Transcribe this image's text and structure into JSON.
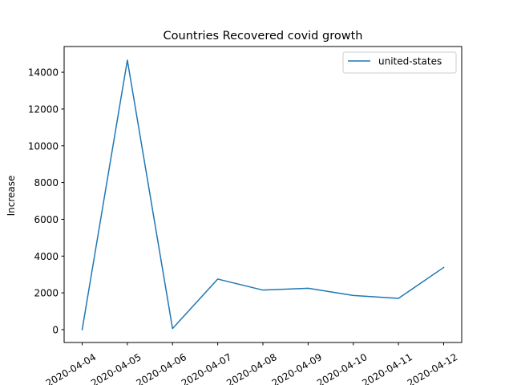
{
  "chart_data": {
    "type": "line",
    "title": "Countries Recovered covid growth",
    "xlabel": "",
    "ylabel": "Increase",
    "categories": [
      "2020-04-04",
      "2020-04-05",
      "2020-04-06",
      "2020-04-07",
      "2020-04-08",
      "2020-04-09",
      "2020-04-10",
      "2020-04-11",
      "2020-04-12"
    ],
    "series": [
      {
        "name": "united-states",
        "color": "#1f77b4",
        "values": [
          0,
          14660,
          60,
          2750,
          2150,
          2250,
          1860,
          1700,
          3380
        ]
      }
    ],
    "ylim": [
      -700,
      15400
    ],
    "yticks": [
      0,
      2000,
      4000,
      6000,
      8000,
      10000,
      12000,
      14000
    ],
    "ytick_labels": [
      "0",
      "2000",
      "4000",
      "6000",
      "8000",
      "10000",
      "12000",
      "14000"
    ],
    "grid": false,
    "legend_position": "top-right"
  }
}
